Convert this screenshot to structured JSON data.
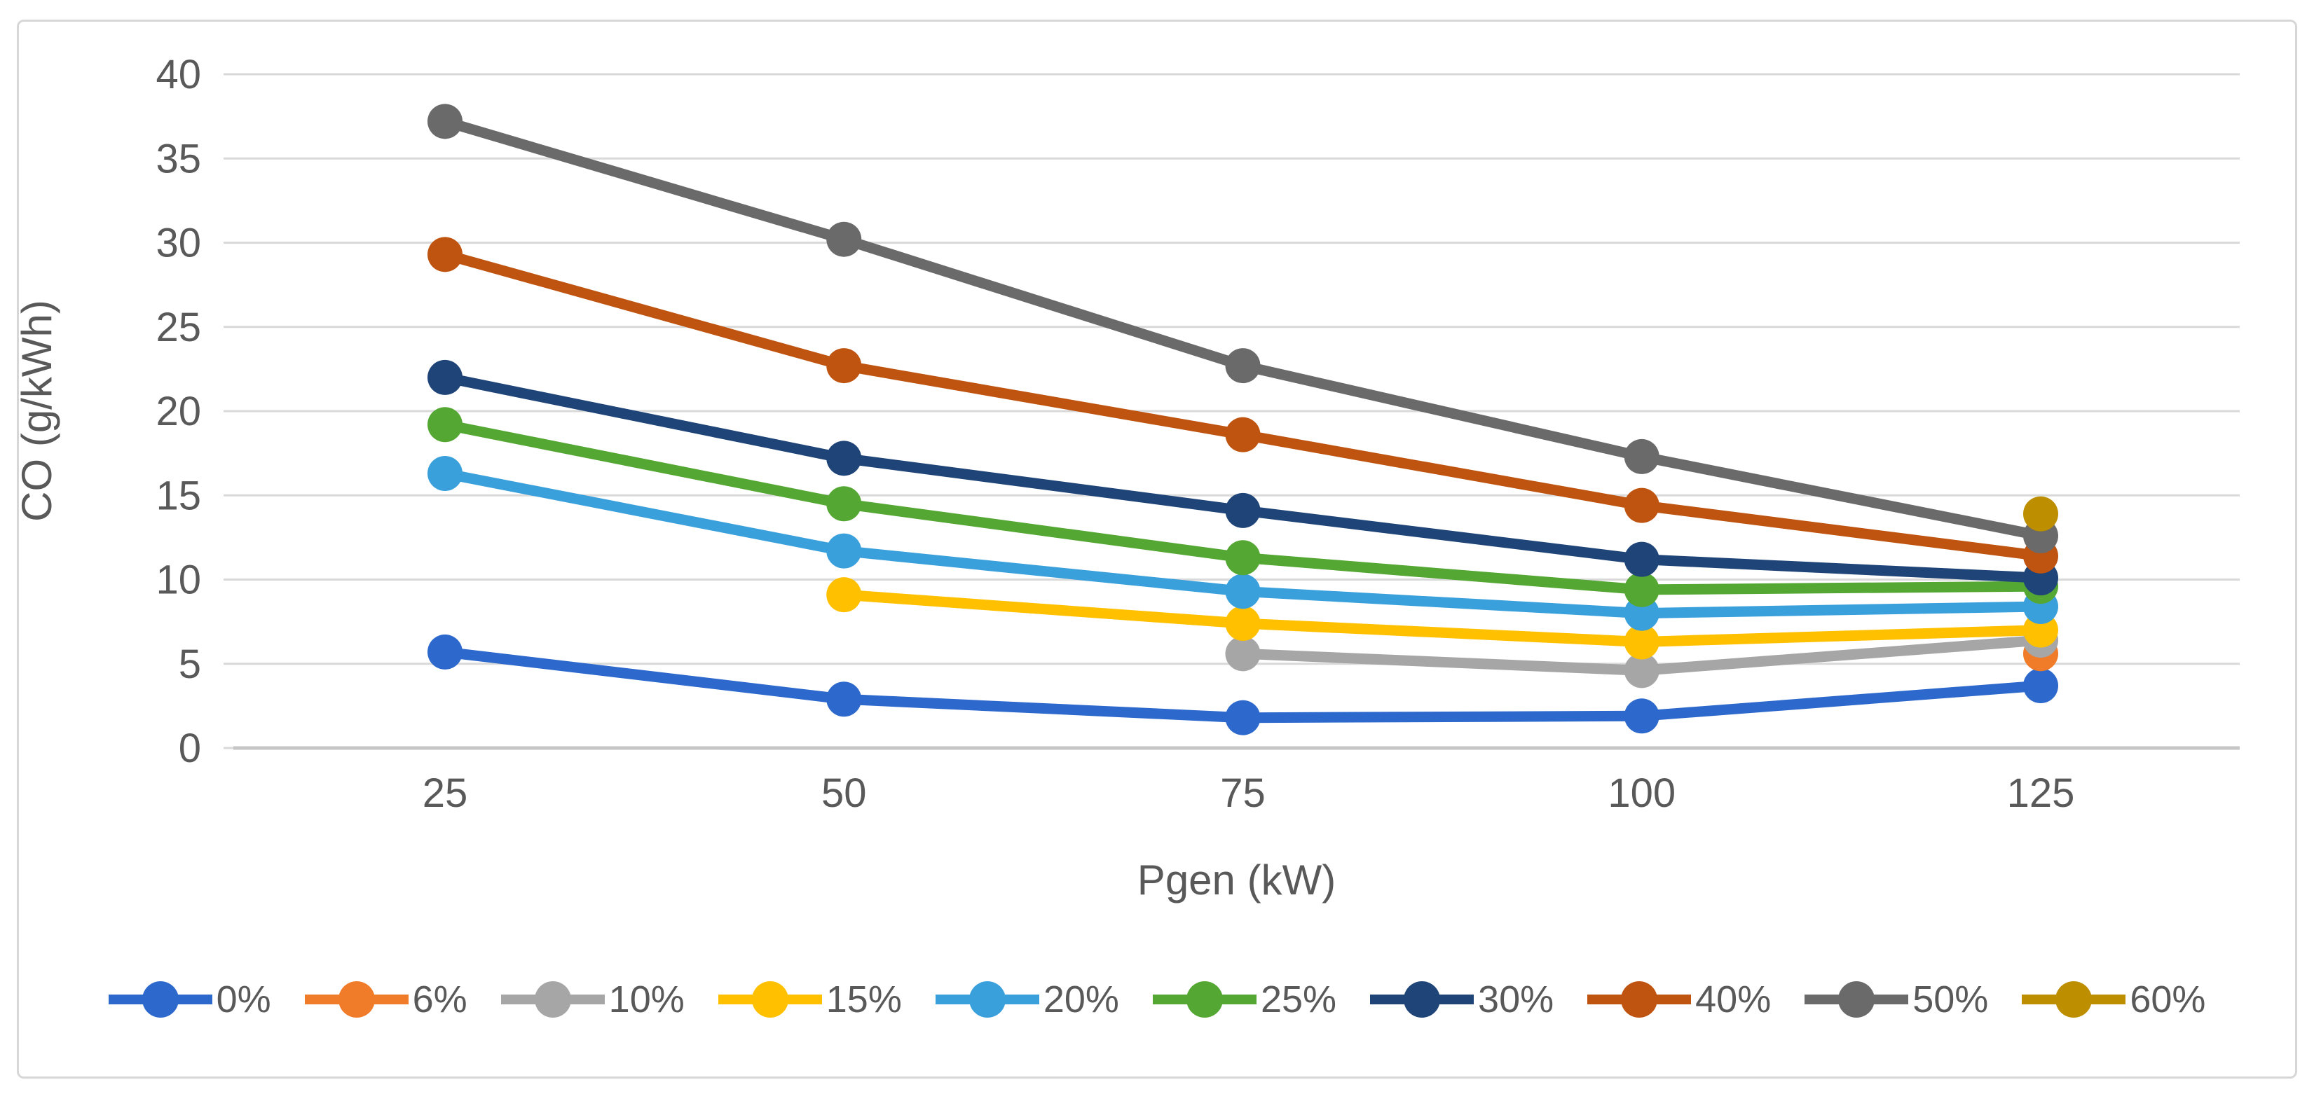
{
  "figure": {
    "background_color": "#ffffff",
    "border_color": "#d7d7d7"
  },
  "axis": {
    "tick_color": "#595959",
    "gridline_color": "#d9d9d9",
    "axisline_color": "#c6c6c6"
  },
  "chart_data": {
    "type": "line",
    "title": "",
    "xlabel": "Pgen (kW)",
    "ylabel": "CO (g/kWh)",
    "categories": [
      25,
      50,
      75,
      100,
      125
    ],
    "ylim": [
      0,
      40
    ],
    "yticks": [
      0,
      5,
      10,
      15,
      20,
      25,
      30,
      35,
      40
    ],
    "grid": true,
    "legend_position": "bottom",
    "marker": "circle",
    "series": [
      {
        "name": "0%",
        "color": "#2d68cc",
        "values": [
          5.7,
          2.9,
          1.8,
          1.9,
          3.7
        ]
      },
      {
        "name": "6%",
        "color": "#f07b28",
        "values": [
          null,
          null,
          null,
          null,
          5.6
        ]
      },
      {
        "name": "10%",
        "color": "#a6a6a6",
        "values": [
          null,
          null,
          5.6,
          4.6,
          6.4
        ]
      },
      {
        "name": "15%",
        "color": "#ffc000",
        "values": [
          null,
          9.1,
          7.4,
          6.3,
          7.0
        ]
      },
      {
        "name": "20%",
        "color": "#3aa0dc",
        "values": [
          16.3,
          11.7,
          9.3,
          8.0,
          8.4
        ]
      },
      {
        "name": "25%",
        "color": "#54a733",
        "values": [
          19.2,
          14.5,
          11.3,
          9.4,
          9.6
        ]
      },
      {
        "name": "30%",
        "color": "#1f4478",
        "values": [
          22.0,
          17.2,
          14.1,
          11.2,
          10.1
        ]
      },
      {
        "name": "40%",
        "color": "#bf5310",
        "values": [
          29.3,
          22.7,
          18.6,
          14.4,
          11.4
        ]
      },
      {
        "name": "50%",
        "color": "#6a6a6a",
        "values": [
          37.2,
          30.2,
          22.7,
          17.3,
          12.6
        ]
      },
      {
        "name": "60%",
        "color": "#bd8e00",
        "values": [
          null,
          null,
          null,
          null,
          13.9
        ]
      }
    ]
  }
}
